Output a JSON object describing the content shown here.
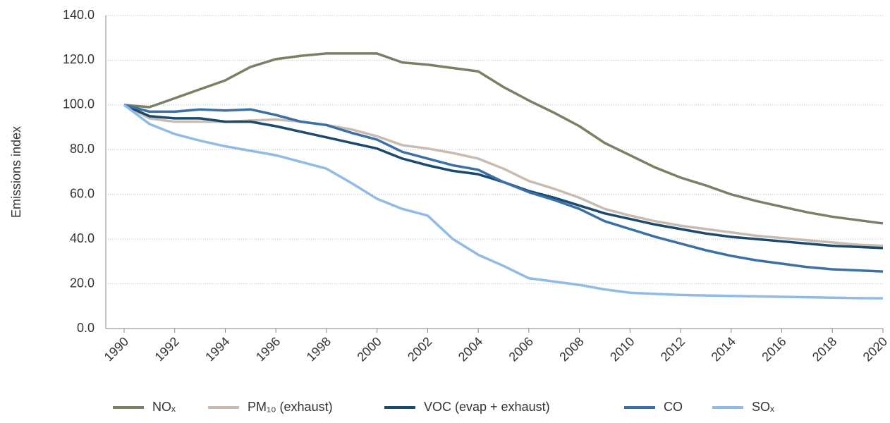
{
  "chart_data": {
    "type": "line",
    "y_label": "Emissions index",
    "x": [
      1990,
      1991,
      1992,
      1993,
      1994,
      1995,
      1996,
      1997,
      1998,
      1999,
      2000,
      2001,
      2002,
      2003,
      2004,
      2005,
      2006,
      2007,
      2008,
      2009,
      2010,
      2011,
      2012,
      2013,
      2014,
      2015,
      2016,
      2017,
      2018,
      2019,
      2020
    ],
    "xlim": [
      1990,
      2020
    ],
    "xticks": [
      1990,
      1992,
      1994,
      1996,
      1998,
      2000,
      2002,
      2004,
      2006,
      2008,
      2010,
      2012,
      2014,
      2016,
      2018,
      2020
    ],
    "ylim": [
      0,
      140
    ],
    "yticks": [
      {
        "value": 0,
        "label": "0.0"
      },
      {
        "value": 20,
        "label": "20.0"
      },
      {
        "value": 40,
        "label": "40.0"
      },
      {
        "value": 60,
        "label": "60.0"
      },
      {
        "value": 80,
        "label": "80.0"
      },
      {
        "value": 100,
        "label": "100.0"
      },
      {
        "value": 120,
        "label": "120.0"
      },
      {
        "value": 140,
        "label": "140.0"
      }
    ],
    "grid": true,
    "legend": "bottom",
    "series": [
      {
        "name": "NOₓ",
        "color": "#7a8063",
        "values": [
          100,
          99,
          103,
          107,
          111,
          117,
          120.5,
          122,
          123,
          123,
          123,
          119,
          118,
          116.5,
          115,
          108,
          102,
          96.5,
          90.5,
          83,
          77.5,
          72,
          67.5,
          64,
          60,
          57,
          54.5,
          52,
          50,
          48.5,
          47
        ]
      },
      {
        "name": "PM₁₀ (exhaust)",
        "color": "#c8bcb2",
        "values": [
          100,
          94,
          92.5,
          92.5,
          92.5,
          93,
          93.5,
          92.5,
          91,
          89,
          86,
          82,
          80.5,
          78.5,
          76,
          71.5,
          66,
          62.5,
          58.5,
          53.5,
          50.5,
          48,
          46,
          44.5,
          43,
          41.5,
          40.5,
          39.5,
          38.5,
          37.5,
          37
        ]
      },
      {
        "name": "VOC (evap + exhaust)",
        "color": "#1a4a6e",
        "values": [
          100,
          95,
          94,
          94,
          92.5,
          92.5,
          90.5,
          88,
          85.5,
          83,
          80.5,
          76,
          73,
          70.5,
          69,
          65.5,
          61.5,
          58.5,
          55,
          51.5,
          49,
          46.5,
          44.5,
          42.5,
          41,
          40,
          39,
          38,
          37,
          36.5,
          36
        ]
      },
      {
        "name": "CO",
        "color": "#3a6fa8",
        "values": [
          100,
          97,
          97,
          98,
          97.5,
          98,
          95.5,
          92.5,
          91,
          87.5,
          84.5,
          79,
          76,
          73,
          71,
          65.5,
          61,
          57.5,
          53.5,
          48,
          44.5,
          41,
          38,
          35,
          32.5,
          30.5,
          29,
          27.5,
          26.5,
          26,
          25.5
        ]
      },
      {
        "name": "SOₓ",
        "color": "#8fbbe6",
        "values": [
          100,
          91.5,
          87,
          84,
          81.5,
          79.5,
          77.5,
          74.5,
          71.5,
          65,
          58,
          53.5,
          50.5,
          40,
          33,
          28,
          22.5,
          21,
          19.5,
          17.5,
          16,
          15.5,
          15,
          14.8,
          14.6,
          14.4,
          14.2,
          14,
          13.8,
          13.6,
          13.5
        ]
      }
    ]
  }
}
